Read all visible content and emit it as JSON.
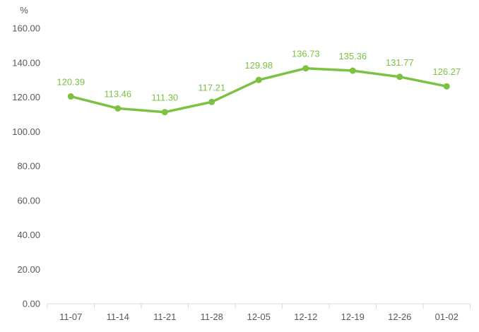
{
  "chart": {
    "colors": {
      "series_green": "#7CC143",
      "axis_text_gray": "#595959",
      "axis_line_gray": "#D9D9D9",
      "background": "#FFFFFF"
    }
  },
  "chart_data": {
    "type": "line",
    "title": "",
    "xlabel": "",
    "ylabel": "%",
    "categories": [
      "11-07",
      "11-14",
      "11-21",
      "11-28",
      "12-05",
      "12-12",
      "12-19",
      "12-26",
      "01-02"
    ],
    "series": [
      {
        "name": "value-percent",
        "values": [
          120.39,
          113.46,
          111.3,
          117.21,
          129.98,
          136.73,
          135.36,
          131.77,
          126.27
        ],
        "data_labels": [
          "120.39",
          "113.46",
          "111.30",
          "117.21",
          "129.98",
          "136.73",
          "135.36",
          "131.77",
          "126.27"
        ]
      }
    ],
    "ylim": [
      0,
      160
    ],
    "ytick_step": 20,
    "ytick_labels": [
      "0.00",
      "20.00",
      "40.00",
      "60.00",
      "80.00",
      "100.00",
      "120.00",
      "140.00",
      "160.00"
    ],
    "grid": false,
    "legend": "none",
    "markers": true
  }
}
